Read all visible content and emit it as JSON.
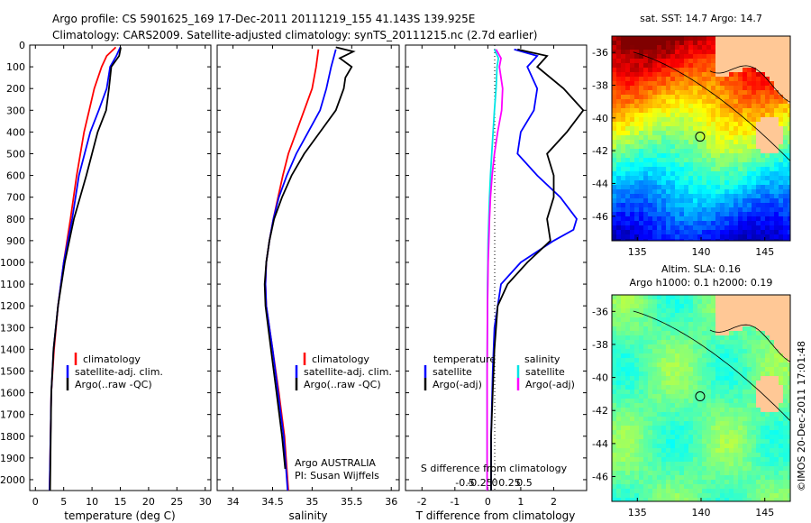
{
  "header": {
    "line1": "Argo profile: CS 5901625_169 17-Dec-2011 20111219_155 41.143S 139.925E",
    "line2": "Climatology: CARS2009. Satellite-adjusted climatology: synTS_20111215.nc (2.7d earlier)"
  },
  "side_label": "©IMOS 20-Dec-2011 17:01:48",
  "colors": {
    "climatology": "#ff0000",
    "satellite": "#0000ff",
    "argo": "#000000",
    "sat_salinity": "#00e5e5",
    "argo_salinity": "#ff00ff"
  },
  "chart_data": [
    {
      "id": "temperature",
      "type": "line",
      "xlabel": "temperature (deg C)",
      "xlim": [
        -1,
        31
      ],
      "xticks": [
        0,
        5,
        10,
        15,
        20,
        25,
        30
      ],
      "ylim": [
        0,
        2050
      ],
      "yticks": [
        0,
        100,
        200,
        300,
        400,
        500,
        600,
        700,
        800,
        900,
        1000,
        1100,
        1200,
        1300,
        1400,
        1500,
        1600,
        1700,
        1800,
        1900,
        2000
      ],
      "legend": [
        "climatology",
        "satellite-adj. clim.",
        "Argo(..raw -QC)"
      ],
      "series": [
        {
          "name": "climatology",
          "color": "#ff0000",
          "depth": [
            10,
            50,
            100,
            200,
            300,
            400,
            600,
            800,
            1000,
            1200,
            1400,
            1600,
            2050
          ],
          "values": [
            14.2,
            12.6,
            11.7,
            10.4,
            9.5,
            8.6,
            7.3,
            6.2,
            5.0,
            4.0,
            3.3,
            2.8,
            2.5
          ]
        },
        {
          "name": "satellite-adj. clim.",
          "color": "#0000ff",
          "depth": [
            10,
            50,
            100,
            200,
            300,
            400,
            600,
            800,
            1000,
            1200,
            1400,
            1600,
            2050
          ],
          "values": [
            15.0,
            14.3,
            13.2,
            12.6,
            11.2,
            9.7,
            7.7,
            6.5,
            5.0,
            4.0,
            3.2,
            2.8,
            2.5
          ]
        },
        {
          "name": "Argo(..raw -QC)",
          "color": "#000000",
          "depth": [
            10,
            50,
            100,
            200,
            300,
            400,
            500,
            600,
            800,
            1000,
            1200,
            1400,
            1600,
            2050
          ],
          "values": [
            15.1,
            14.8,
            13.4,
            13.0,
            12.5,
            11.0,
            10.0,
            9.0,
            6.8,
            5.2,
            4.0,
            3.2,
            2.8,
            2.6
          ]
        }
      ]
    },
    {
      "id": "salinity",
      "type": "line",
      "xlabel": "salinity",
      "xlim": [
        33.8,
        36.1
      ],
      "xticks": [
        34,
        34.5,
        35,
        35.5,
        36
      ],
      "xtick_labels": [
        "34",
        "34.5",
        "35",
        "35.5",
        "36"
      ],
      "ylim": [
        0,
        2050
      ],
      "legend": [
        "climatology",
        "satellite-adj. clim.",
        "Argo(..raw -QC)"
      ],
      "annotation": [
        "Argo AUSTRALIA",
        "PI: Susan Wijffels"
      ],
      "series": [
        {
          "name": "climatology",
          "color": "#ff0000",
          "depth": [
            20,
            100,
            200,
            300,
            400,
            500,
            600,
            700,
            800,
            900,
            1000,
            1100,
            1200,
            1400,
            1600,
            1800,
            2050
          ],
          "values": [
            35.08,
            35.05,
            35.0,
            34.9,
            34.8,
            34.7,
            34.63,
            34.57,
            34.51,
            34.46,
            34.42,
            34.41,
            34.42,
            34.5,
            34.58,
            34.65,
            34.7
          ]
        },
        {
          "name": "satellite-adj. clim.",
          "color": "#0000ff",
          "depth": [
            20,
            100,
            200,
            300,
            400,
            500,
            600,
            700,
            800,
            900,
            1000,
            1100,
            1200,
            1400,
            1600,
            1800,
            2050
          ],
          "values": [
            35.3,
            35.24,
            35.18,
            35.1,
            34.95,
            34.8,
            34.68,
            34.58,
            34.51,
            34.46,
            34.42,
            34.41,
            34.42,
            34.5,
            34.57,
            34.64,
            34.69
          ]
        },
        {
          "name": "Argo(..raw -QC)",
          "color": "#000000",
          "depth": [
            10,
            30,
            60,
            100,
            150,
            200,
            300,
            400,
            500,
            600,
            700,
            800,
            900,
            1000,
            1100,
            1200,
            1400,
            1600,
            1800,
            1950
          ],
          "values": [
            35.3,
            35.52,
            35.35,
            35.5,
            35.42,
            35.4,
            35.3,
            35.1,
            34.9,
            34.74,
            34.62,
            34.52,
            34.46,
            34.42,
            34.4,
            34.41,
            34.48,
            34.55,
            34.62,
            34.66
          ]
        }
      ]
    },
    {
      "id": "differences",
      "type": "line",
      "xlabel": "T difference from climatology",
      "xlim": [
        -2.5,
        3.0
      ],
      "xticks": [
        -2,
        -1,
        0,
        1,
        2
      ],
      "top_axis_label": "S difference from climatology",
      "top_ticks": [
        -0.5,
        -0.25,
        0,
        0.25,
        0.5
      ],
      "top_tick_labels": [
        "-0.5",
        "-0.25",
        "0",
        "0.25",
        "0.5"
      ],
      "ylim": [
        0,
        2050
      ],
      "legend_temperature_title": "temperature",
      "legend_salinity_title": "salinity",
      "legend_temperature": [
        "satellite",
        "Argo(-adj)"
      ],
      "legend_salinity": [
        "satellite",
        "Argo(-adj)"
      ],
      "series": [
        {
          "name": "temperature satellite",
          "color": "#0000ff",
          "depth": [
            20,
            50,
            100,
            200,
            300,
            400,
            500,
            600,
            700,
            800,
            850,
            900,
            1000,
            1100,
            1300,
            1500,
            1800,
            2050
          ],
          "values": [
            0.8,
            1.5,
            1.2,
            1.5,
            1.4,
            1.0,
            0.9,
            1.5,
            2.2,
            2.7,
            2.6,
            2.0,
            1.0,
            0.4,
            0.2,
            0.15,
            0.1,
            0.1
          ]
        },
        {
          "name": "temperature Argo(-adj)",
          "color": "#000000",
          "depth": [
            20,
            50,
            100,
            200,
            300,
            400,
            500,
            600,
            700,
            800,
            900,
            1000,
            1100,
            1200,
            1400,
            1600,
            1800,
            2050
          ],
          "values": [
            0.9,
            1.8,
            1.5,
            2.3,
            2.9,
            2.4,
            1.8,
            2.0,
            2.0,
            1.8,
            1.9,
            1.2,
            0.6,
            0.3,
            0.2,
            0.15,
            0.1,
            0.1
          ]
        },
        {
          "name": "salinity satellite",
          "color": "#00e5e5",
          "depth": [
            20,
            60,
            100,
            200,
            300,
            400,
            500,
            600,
            700,
            800,
            900,
            1000,
            1100,
            1200,
            1500,
            1800,
            2050
          ],
          "values": [
            0.2,
            0.32,
            0.28,
            0.25,
            0.2,
            0.16,
            0.12,
            0.08,
            0.05,
            0.03,
            0.01,
            0.0,
            -0.01,
            -0.01,
            -0.02,
            -0.02,
            -0.02
          ]
        },
        {
          "name": "salinity Argo(-adj)",
          "color": "#ff00ff",
          "depth": [
            20,
            60,
            100,
            200,
            300,
            400,
            500,
            600,
            700,
            800,
            900,
            1000,
            1100,
            1200,
            1500,
            1800,
            2050
          ],
          "values": [
            0.25,
            0.4,
            0.35,
            0.45,
            0.42,
            0.3,
            0.2,
            0.13,
            0.08,
            0.05,
            0.03,
            0.01,
            0.0,
            -0.01,
            -0.02,
            -0.02,
            -0.02
          ]
        }
      ]
    },
    {
      "id": "sst_map",
      "type": "heatmap",
      "title": "sat. SST: 14.7 Argo: 14.7",
      "xlim": [
        133,
        147
      ],
      "ylim": [
        -47.5,
        -35
      ],
      "xticks": [
        135,
        140,
        145
      ],
      "yticks": [
        -36,
        -38,
        -40,
        -42,
        -44,
        -46
      ],
      "marker": {
        "lon": 139.925,
        "lat": -41.143
      }
    },
    {
      "id": "sla_map",
      "type": "heatmap",
      "title_line1": "Altim. SLA: 0.16",
      "title_line2": "Argo h1000: 0.1 h2000: 0.19",
      "xlim": [
        133,
        147
      ],
      "ylim": [
        -47.5,
        -35
      ],
      "xticks": [
        135,
        140,
        145
      ],
      "yticks": [
        -36,
        -38,
        -40,
        -42,
        -44,
        -46
      ],
      "marker": {
        "lon": 139.925,
        "lat": -41.143
      }
    }
  ]
}
